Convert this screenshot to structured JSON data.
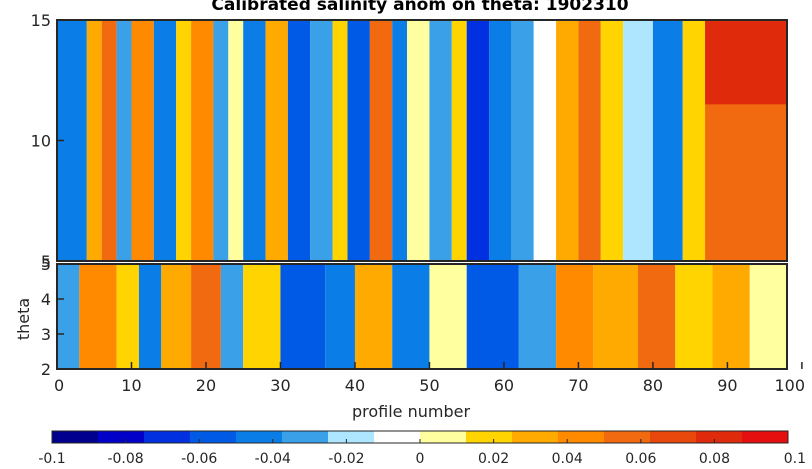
{
  "chart_data": [
    {
      "type": "heatmap",
      "title": "Calibrated salinity anom on theta: 1902310",
      "xlabel": "",
      "ylabel": "",
      "xlim": [
        0,
        98
      ],
      "ylim": [
        5,
        15
      ],
      "yticks": [
        5,
        10,
        15
      ],
      "xticks": [
        0,
        10,
        20,
        30,
        40,
        50,
        60,
        70,
        80,
        90,
        100
      ],
      "grid": false,
      "color_bands": [
        {
          "x0": 0,
          "x1": 4,
          "v": -0.04
        },
        {
          "x0": 4,
          "x1": 6,
          "v": 0.03
        },
        {
          "x0": 6,
          "x1": 8,
          "v": 0.05
        },
        {
          "x0": 8,
          "x1": 10,
          "v": -0.03
        },
        {
          "x0": 10,
          "x1": 13,
          "v": 0.04
        },
        {
          "x0": 13,
          "x1": 16,
          "v": -0.05
        },
        {
          "x0": 16,
          "x1": 18,
          "v": 0.02
        },
        {
          "x0": 18,
          "x1": 21,
          "v": 0.04
        },
        {
          "x0": 21,
          "x1": 23,
          "v": -0.03
        },
        {
          "x0": 23,
          "x1": 25,
          "v": 0.01
        },
        {
          "x0": 25,
          "x1": 28,
          "v": -0.05
        },
        {
          "x0": 28,
          "x1": 31,
          "v": 0.03
        },
        {
          "x0": 31,
          "x1": 34,
          "v": -0.06
        },
        {
          "x0": 34,
          "x1": 37,
          "v": -0.03
        },
        {
          "x0": 37,
          "x1": 39,
          "v": 0.02
        },
        {
          "x0": 39,
          "x1": 42,
          "v": -0.06
        },
        {
          "x0": 42,
          "x1": 45,
          "v": 0.05
        },
        {
          "x0": 45,
          "x1": 47,
          "v": -0.04
        },
        {
          "x0": 47,
          "x1": 50,
          "v": 0.0
        },
        {
          "x0": 50,
          "x1": 53,
          "v": -0.03
        },
        {
          "x0": 53,
          "x1": 55,
          "v": 0.02
        },
        {
          "x0": 55,
          "x1": 58,
          "v": -0.07
        },
        {
          "x0": 58,
          "x1": 61,
          "v": -0.05
        },
        {
          "x0": 61,
          "x1": 64,
          "v": -0.03
        },
        {
          "x0": 64,
          "x1": 67,
          "v": -0.01
        },
        {
          "x0": 67,
          "x1": 70,
          "v": 0.03
        },
        {
          "x0": 70,
          "x1": 73,
          "v": 0.05
        },
        {
          "x0": 73,
          "x1": 76,
          "v": 0.02
        },
        {
          "x0": 76,
          "x1": 80,
          "v": -0.02
        },
        {
          "x0": 80,
          "x1": 84,
          "v": -0.04
        },
        {
          "x0": 84,
          "x1": 87,
          "v": 0.02
        },
        {
          "x0": 87,
          "x1": 98,
          "v": 0.05
        }
      ],
      "color_bands_top": [
        {
          "x0": 87,
          "x1": 98,
          "v": 0.08
        }
      ]
    },
    {
      "type": "heatmap",
      "title": "",
      "xlabel": "profile number",
      "ylabel": "theta",
      "xlim": [
        0,
        98
      ],
      "ylim": [
        2,
        5
      ],
      "yticks": [
        2,
        3,
        4,
        5
      ],
      "xticks": [
        0,
        10,
        20,
        30,
        40,
        50,
        60,
        70,
        80,
        90,
        100
      ],
      "grid": false,
      "color_bands": [
        {
          "x0": 0,
          "x1": 3,
          "v": -0.03
        },
        {
          "x0": 3,
          "x1": 8,
          "v": 0.04
        },
        {
          "x0": 8,
          "x1": 11,
          "v": 0.02
        },
        {
          "x0": 11,
          "x1": 14,
          "v": -0.04
        },
        {
          "x0": 14,
          "x1": 18,
          "v": 0.03
        },
        {
          "x0": 18,
          "x1": 22,
          "v": 0.05
        },
        {
          "x0": 22,
          "x1": 25,
          "v": -0.03
        },
        {
          "x0": 25,
          "x1": 30,
          "v": 0.02
        },
        {
          "x0": 30,
          "x1": 36,
          "v": -0.06
        },
        {
          "x0": 36,
          "x1": 40,
          "v": -0.04
        },
        {
          "x0": 40,
          "x1": 45,
          "v": 0.03
        },
        {
          "x0": 45,
          "x1": 50,
          "v": -0.05
        },
        {
          "x0": 50,
          "x1": 55,
          "v": 0.01
        },
        {
          "x0": 55,
          "x1": 62,
          "v": -0.06
        },
        {
          "x0": 62,
          "x1": 67,
          "v": -0.03
        },
        {
          "x0": 67,
          "x1": 72,
          "v": 0.04
        },
        {
          "x0": 72,
          "x1": 78,
          "v": 0.03
        },
        {
          "x0": 78,
          "x1": 83,
          "v": 0.05
        },
        {
          "x0": 83,
          "x1": 88,
          "v": 0.02
        },
        {
          "x0": 88,
          "x1": 93,
          "v": 0.03
        },
        {
          "x0": 93,
          "x1": 98,
          "v": 0.01
        }
      ]
    }
  ],
  "colorbar": {
    "min": -0.1,
    "max": 0.1,
    "tick_labels": [
      "-0.1",
      "-0.08",
      "-0.06",
      "-0.04",
      "-0.02",
      "0",
      "0.02",
      "0.04",
      "0.06",
      "0.08",
      "0.1"
    ],
    "colors": [
      "#00008f",
      "#0000c8",
      "#0030e0",
      "#005ae6",
      "#0a7de6",
      "#3aa0e8",
      "#aee6ff",
      "#ffffff",
      "#ffff9f",
      "#ffd400",
      "#ffaa00",
      "#ff8a00",
      "#f26a0f",
      "#e8480c",
      "#e02a0c",
      "#e60f0f"
    ]
  }
}
